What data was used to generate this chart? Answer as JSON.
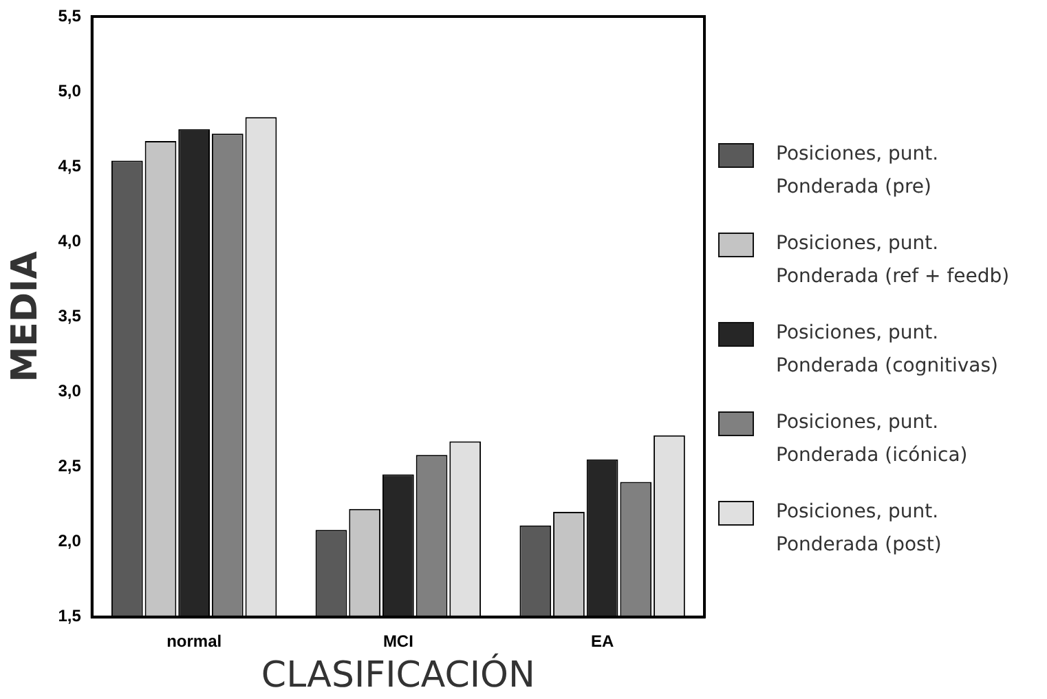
{
  "chart_data": {
    "type": "bar",
    "xlabel": "CLASIFICACIÓN",
    "ylabel": "MEDIA",
    "categories": [
      "normal",
      "MCI",
      "EA"
    ],
    "series": [
      {
        "name": "Posiciones, punt. Ponderada (pre)",
        "color": "#5a5a5a",
        "values": [
          4.54,
          2.08,
          2.11
        ]
      },
      {
        "name": "Posiciones, punt. Ponderada (ref + feedb)",
        "color": "#c4c4c4",
        "values": [
          4.67,
          2.22,
          2.2
        ]
      },
      {
        "name": "Posiciones, punt. Ponderada (cognitivas)",
        "color": "#262626",
        "values": [
          4.75,
          2.45,
          2.55
        ]
      },
      {
        "name": "Posiciones, punt. Ponderada (icónica)",
        "color": "#808080",
        "values": [
          4.72,
          2.58,
          2.4
        ]
      },
      {
        "name": "Posiciones, punt. Ponderada (post)",
        "color": "#e0e0e0",
        "values": [
          4.83,
          2.67,
          2.71
        ]
      }
    ],
    "ylim": [
      1.5,
      5.5
    ],
    "yticks": [
      {
        "value": 1.5,
        "label": "1,5"
      },
      {
        "value": 2,
        "label": "2,0"
      },
      {
        "value": 2.5,
        "label": "2,5"
      },
      {
        "value": 3,
        "label": "3,0"
      },
      {
        "value": 3.5,
        "label": "3,5"
      },
      {
        "value": 4,
        "label": "4,0"
      },
      {
        "value": 4.5,
        "label": "4,5"
      },
      {
        "value": 5,
        "label": "5,0"
      },
      {
        "value": 5.5,
        "label": "5,5"
      }
    ],
    "grid": false,
    "legend": "right"
  }
}
